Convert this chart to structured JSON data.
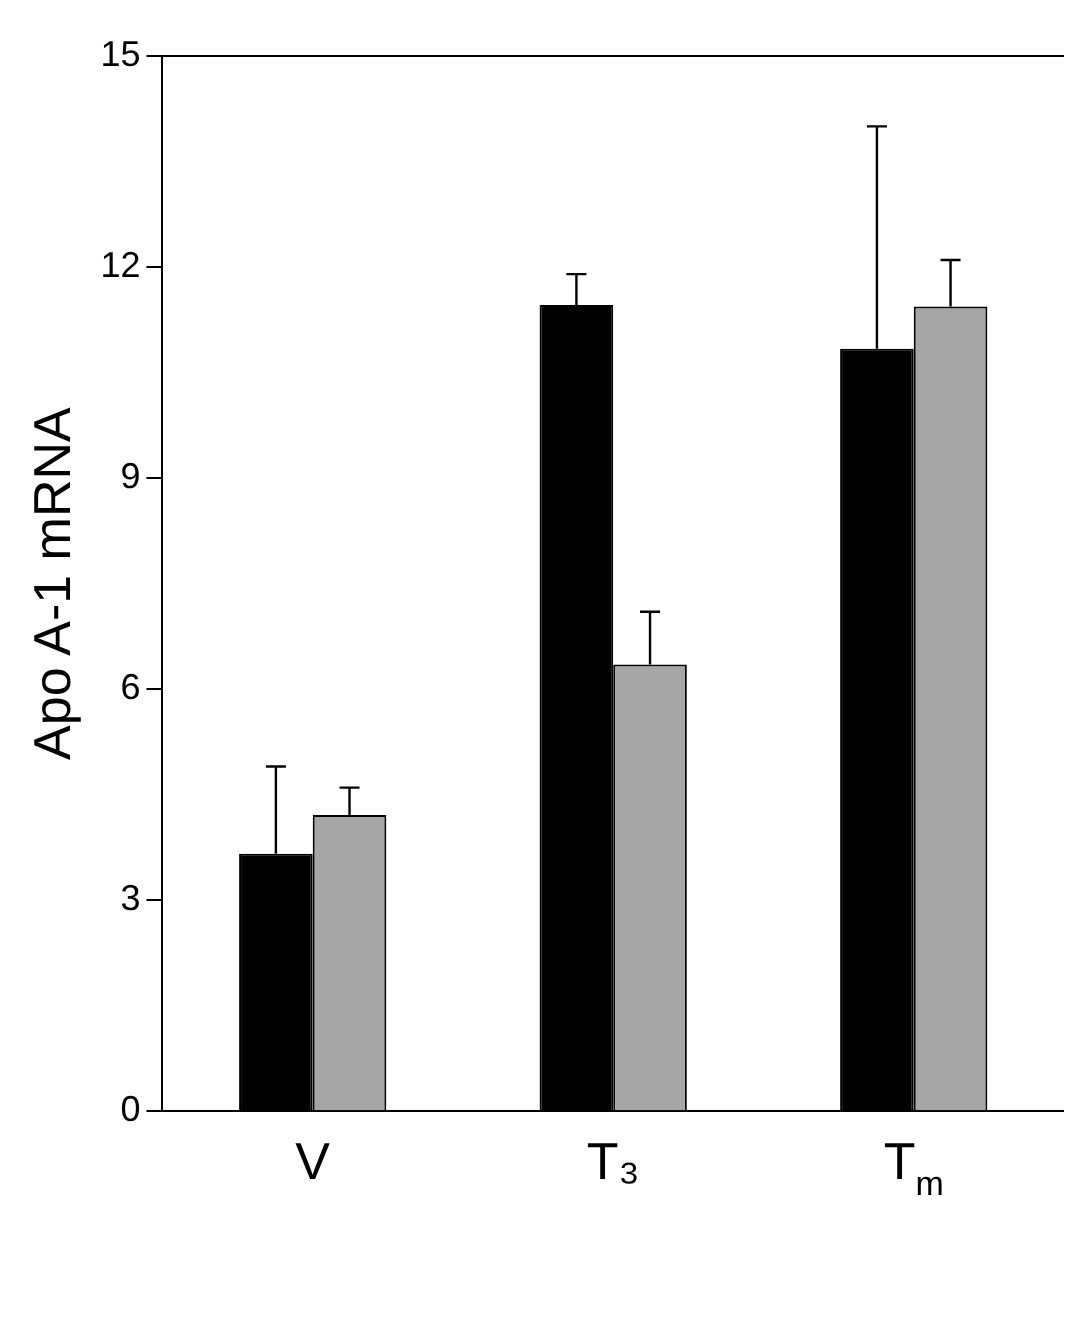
{
  "chart_data": {
    "type": "bar",
    "ylabel": "Apo A-1 mRNA",
    "categories": [
      "V",
      "T₃",
      "T$_{m}$"
    ],
    "series": [
      {
        "color": "#000000",
        "values": [
          3.66,
          11.46,
          10.84
        ],
        "errors": [
          [
            3.66,
            4.9
          ],
          [
            11.46,
            11.9
          ],
          [
            10.84,
            14.0
          ]
        ]
      },
      {
        "color": "#a6a6a6",
        "values": [
          4.21,
          6.35,
          11.44
        ],
        "errors": [
          [
            4.21,
            4.6
          ],
          [
            6.35,
            7.1
          ],
          [
            11.44,
            12.1
          ]
        ]
      }
    ],
    "ylim": [
      0,
      15
    ],
    "yticks": [
      0,
      3,
      6,
      9,
      12,
      15
    ],
    "grid": false,
    "legend": false
  }
}
